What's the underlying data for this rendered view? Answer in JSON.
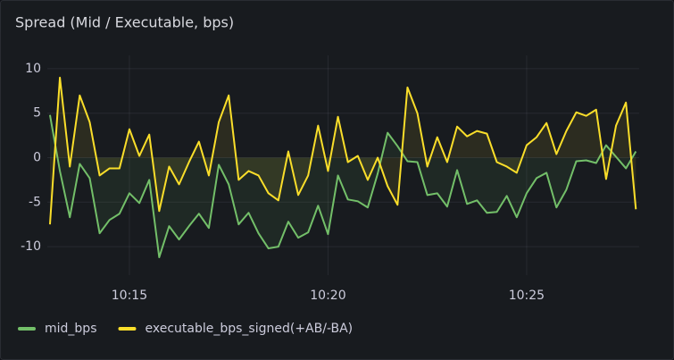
{
  "chart_data": {
    "type": "line",
    "title": "Spread (Mid / Executable, bps)",
    "x": [
      "10:13:00",
      "10:13:15",
      "10:13:30",
      "10:13:45",
      "10:14:00",
      "10:14:15",
      "10:14:30",
      "10:14:45",
      "10:15:00",
      "10:15:15",
      "10:15:30",
      "10:15:45",
      "10:16:00",
      "10:16:15",
      "10:16:30",
      "10:16:45",
      "10:17:00",
      "10:17:15",
      "10:17:30",
      "10:17:45",
      "10:18:00",
      "10:18:15",
      "10:18:30",
      "10:18:45",
      "10:19:00",
      "10:19:15",
      "10:19:30",
      "10:19:45",
      "10:20:00",
      "10:20:15",
      "10:20:30",
      "10:20:45",
      "10:21:00",
      "10:21:15",
      "10:21:30",
      "10:21:45",
      "10:22:00",
      "10:22:15",
      "10:22:30",
      "10:22:45",
      "10:23:00",
      "10:23:15",
      "10:23:30",
      "10:23:45",
      "10:24:00",
      "10:24:15",
      "10:24:30",
      "10:24:45",
      "10:25:00",
      "10:25:15",
      "10:25:30",
      "10:25:45",
      "10:26:00",
      "10:26:15",
      "10:26:30",
      "10:26:45",
      "10:27:00",
      "10:27:15",
      "10:27:30",
      "10:27:45"
    ],
    "series": [
      {
        "name": "mid_bps",
        "color": "#73bf69",
        "values": [
          4.8,
          -1.5,
          -6.7,
          -0.7,
          -2.3,
          -8.5,
          -7,
          -6.3,
          -4,
          -5.1,
          -2.5,
          -11.2,
          -7.7,
          -9.2,
          -7.7,
          -6.3,
          -7.9,
          -0.8,
          -3,
          -7.5,
          -6.2,
          -8.5,
          -10.2,
          -10,
          -7.2,
          -9,
          -8.4,
          -5.4,
          -8.6,
          -2,
          -4.7,
          -4.9,
          -5.6,
          -1.8,
          2.8,
          1.3,
          -0.4,
          -0.5,
          -4.2,
          -4,
          -5.5,
          -1.4,
          -5.2,
          -4.8,
          -6.2,
          -6.1,
          -4.3,
          -6.7,
          -4,
          -2.3,
          -1.7,
          -5.6,
          -3.6,
          -0.4,
          -0.3,
          -0.6,
          1.4,
          0.1,
          -1.2,
          0.7
        ]
      },
      {
        "name": "executable_bps_signed(+AB/-BA)",
        "color": "#fade2a",
        "values": [
          -7.5,
          9,
          -1,
          7,
          4,
          -2,
          -1.2,
          -1.2,
          3.2,
          0.2,
          2.6,
          -6,
          -1,
          -3,
          -0.5,
          1.8,
          -2,
          4,
          7,
          -2.5,
          -1.5,
          -2,
          -4,
          -4.8,
          0.7,
          -4.2,
          -2,
          3.6,
          -1.5,
          4.6,
          -0.5,
          0.2,
          -2.5,
          0,
          -3.2,
          -5.3,
          7.9,
          5,
          -1,
          2.3,
          -0.5,
          3.5,
          2.4,
          3,
          2.7,
          -0.5,
          -1,
          -1.7,
          1.4,
          2.3,
          3.9,
          0.4,
          3,
          5.1,
          4.7,
          5.4,
          -2.4,
          3.6,
          6.2,
          -5.8
        ]
      }
    ],
    "xlim": [
      "10:12:56",
      "10:27:50"
    ],
    "xticks": [
      {
        "value": "10:15:00",
        "label": "10:15"
      },
      {
        "value": "10:20:00",
        "label": "10:20"
      },
      {
        "value": "10:25:00",
        "label": "10:25"
      }
    ],
    "ylim": [
      -12,
      11.5
    ],
    "yticks": [
      10,
      5,
      0,
      -5,
      -10
    ],
    "grid": true,
    "legend": "bottom"
  }
}
